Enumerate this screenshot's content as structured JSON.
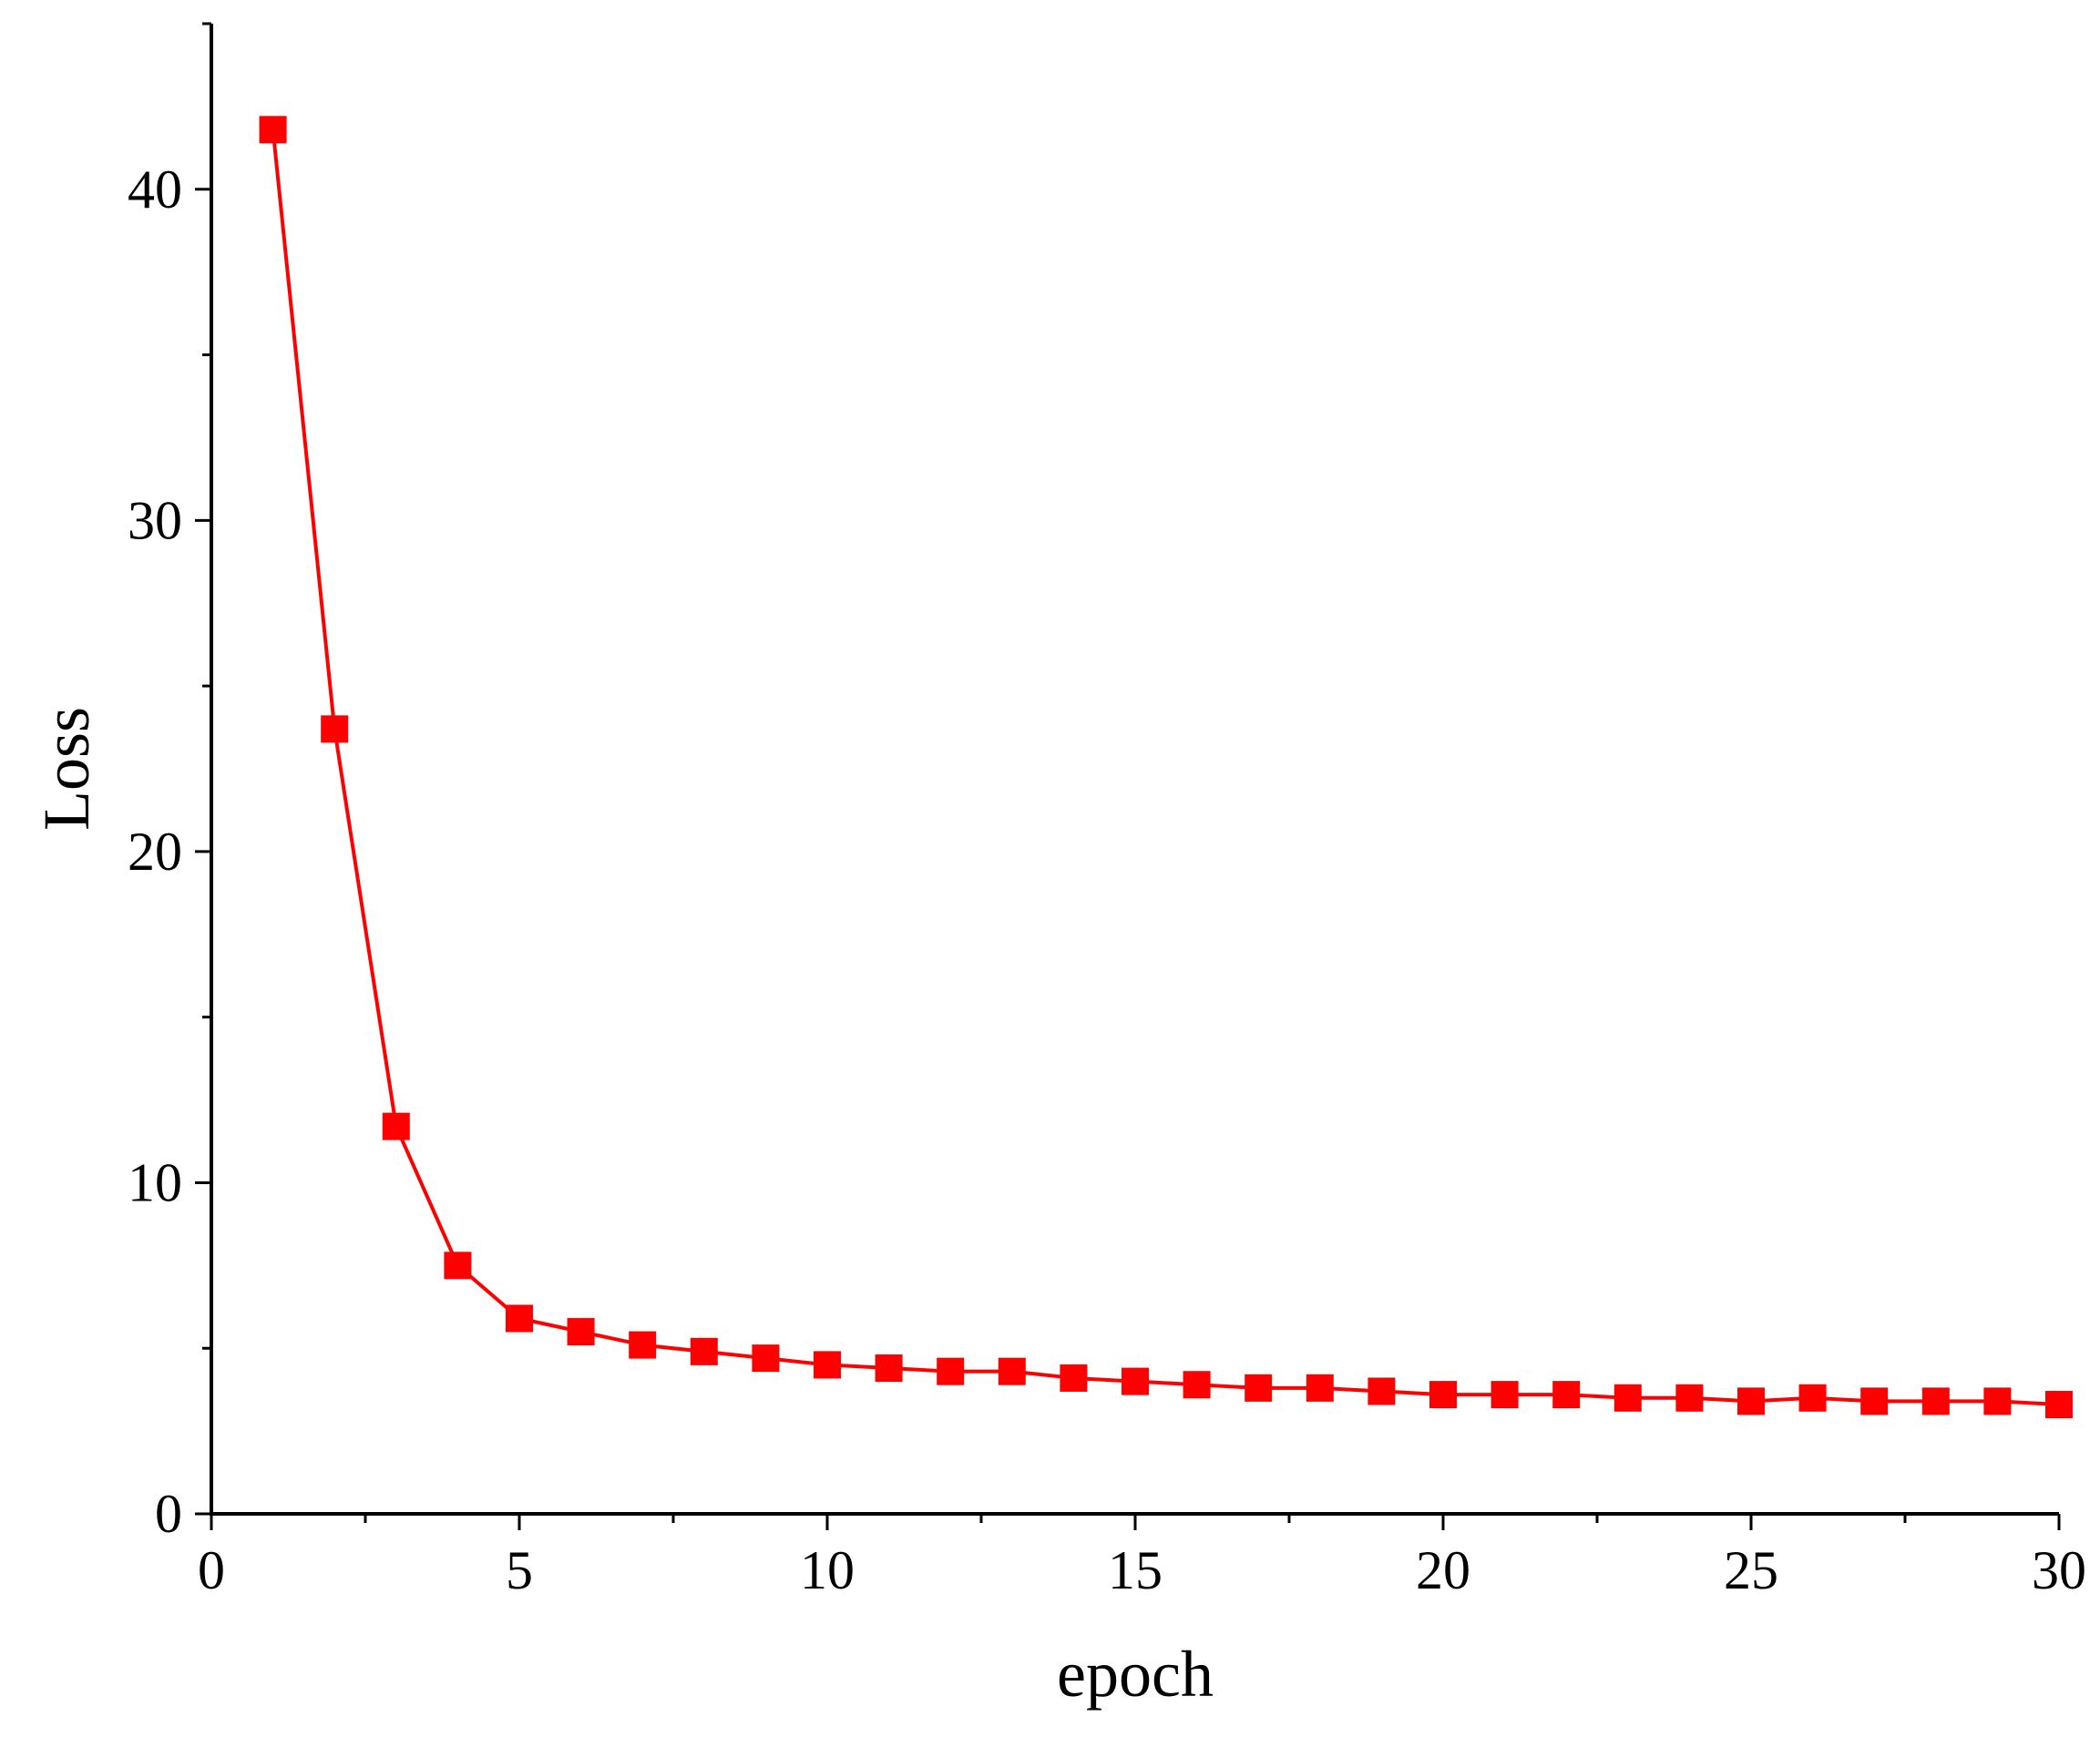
{
  "chart_data": {
    "type": "line",
    "title": "",
    "xlabel": "epoch",
    "ylabel": "Loss",
    "xlim": [
      0,
      30
    ],
    "ylim": [
      0,
      45
    ],
    "x_ticks": [
      0,
      5,
      10,
      15,
      20,
      25,
      30
    ],
    "x_tick_labels": [
      "0",
      "5",
      "10",
      "15",
      "20",
      "25",
      "30"
    ],
    "y_ticks": [
      0,
      10,
      20,
      30,
      40
    ],
    "y_tick_labels": [
      "0",
      "10",
      "20",
      "30",
      "40"
    ],
    "grid": false,
    "legend": "none",
    "series": [
      {
        "marker": "square",
        "color": "#ff0000",
        "x": [
          1,
          2,
          3,
          4,
          5,
          6,
          7,
          8,
          9,
          10,
          11,
          12,
          13,
          14,
          15,
          16,
          17,
          18,
          19,
          20,
          21,
          22,
          23,
          24,
          25,
          26,
          27,
          28,
          29,
          30
        ],
        "y": [
          41.8,
          23.7,
          11.7,
          7.5,
          5.9,
          5.5,
          5.1,
          4.9,
          4.7,
          4.5,
          4.4,
          4.3,
          4.3,
          4.1,
          4.0,
          3.9,
          3.8,
          3.8,
          3.7,
          3.6,
          3.6,
          3.6,
          3.5,
          3.5,
          3.4,
          3.5,
          3.4,
          3.4,
          3.4,
          3.3
        ]
      }
    ]
  }
}
